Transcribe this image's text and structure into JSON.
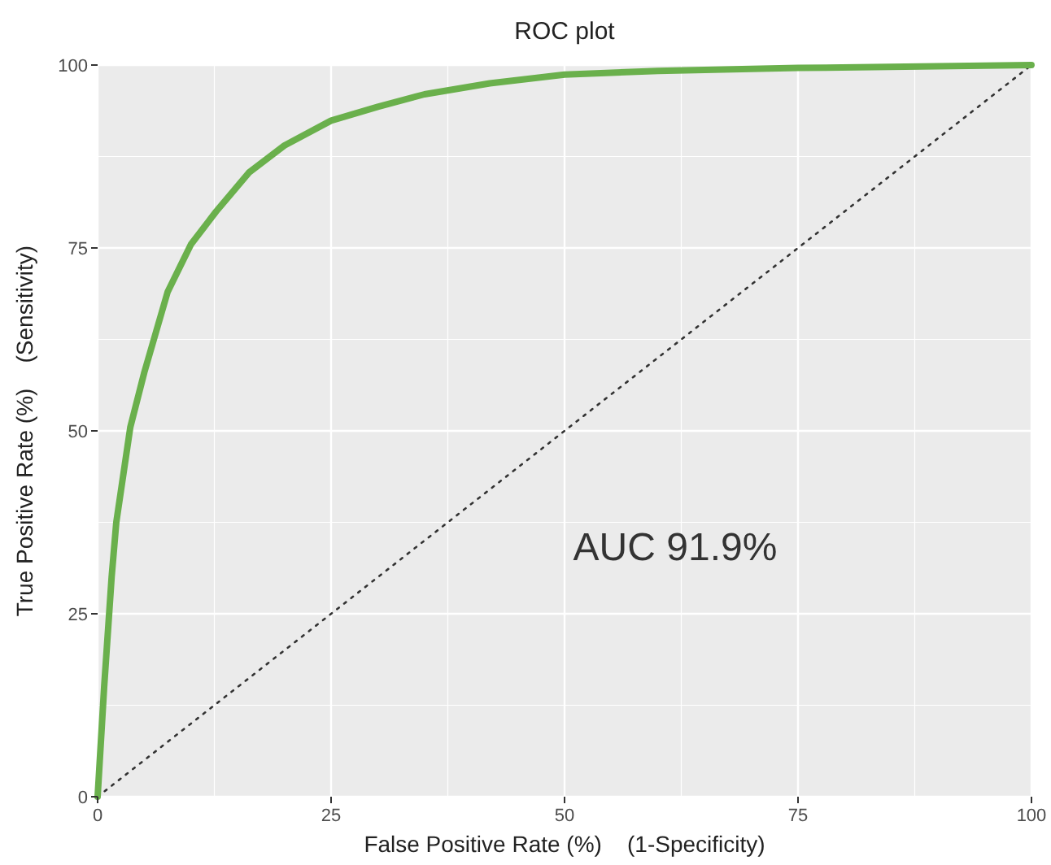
{
  "chart_data": {
    "type": "line",
    "title": "ROC plot",
    "xlabel": "False Positive Rate (%)    (1-Specificity)",
    "ylabel": "True Positive Rate (%)    (Sensitivity)",
    "series": [
      {
        "color": "#6ab04c",
        "x": [
          0,
          0.7,
          1.5,
          2,
          3.5,
          5,
          7.5,
          10,
          12.7,
          16.2,
          20,
          25,
          30,
          35,
          42,
          50,
          60,
          75,
          100
        ],
        "values": [
          0,
          15,
          30,
          37.5,
          50.5,
          58,
          69,
          75.5,
          80,
          85.3,
          89,
          92.4,
          94.3,
          96,
          97.5,
          98.7,
          99.2,
          99.6,
          100
        ]
      },
      {
        "color": "#333333",
        "line_style": "dotted",
        "x": [
          0,
          100
        ],
        "values": [
          0,
          100
        ]
      }
    ],
    "annotations": [
      "AUC 91.9%"
    ],
    "xlim": [
      0,
      100
    ],
    "ylim": [
      0,
      100
    ],
    "xticks": [
      0,
      25,
      50,
      75,
      100
    ],
    "yticks": [
      0,
      25,
      50,
      75,
      100
    ],
    "grid": true
  }
}
